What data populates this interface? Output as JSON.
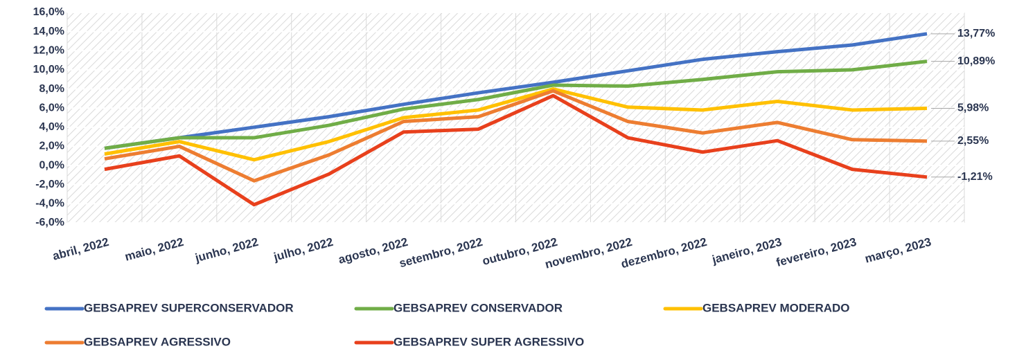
{
  "chart_data": {
    "type": "line",
    "categories": [
      "abril, 2022",
      "maio, 2022",
      "junho, 2022",
      "julho, 2022",
      "agosto, 2022",
      "setembro, 2022",
      "outubro, 2022",
      "novembro, 2022",
      "dezembro, 2022",
      "janeiro, 2023",
      "fevereiro, 2023",
      "março, 2023"
    ],
    "series": [
      {
        "name": "GEBSAPREV SUPERCONSERVADOR",
        "color": "#4472c4",
        "values": [
          1.8,
          2.9,
          4.0,
          5.1,
          6.4,
          7.6,
          8.7,
          9.9,
          11.1,
          11.9,
          12.6,
          13.77
        ],
        "value_labels": [
          null,
          null,
          null,
          null,
          null,
          null,
          null,
          null,
          null,
          null,
          null,
          "13,77%"
        ]
      },
      {
        "name": "GEBSAPREV CONSERVADOR",
        "color": "#70ad47",
        "values": [
          1.8,
          2.9,
          2.9,
          4.2,
          5.9,
          6.9,
          8.4,
          8.3,
          9.0,
          9.8,
          10.0,
          10.89
        ],
        "value_labels": [
          null,
          null,
          null,
          null,
          null,
          null,
          null,
          null,
          null,
          null,
          null,
          "10,89%"
        ]
      },
      {
        "name": "GEBSAPREV MODERADO",
        "color": "#ffc000",
        "values": [
          1.2,
          2.5,
          0.6,
          2.5,
          5.0,
          5.8,
          8.0,
          6.1,
          5.8,
          6.7,
          5.8,
          5.98
        ],
        "value_labels": [
          null,
          null,
          null,
          null,
          null,
          null,
          null,
          null,
          null,
          null,
          null,
          "5,98%"
        ]
      },
      {
        "name": "GEBSAPREV AGRESSIVO",
        "color": "#ed7d31",
        "values": [
          0.7,
          2.0,
          -1.6,
          1.1,
          4.6,
          5.1,
          7.8,
          4.6,
          3.4,
          4.5,
          2.7,
          2.55
        ],
        "value_labels": [
          null,
          null,
          null,
          null,
          null,
          null,
          null,
          null,
          null,
          null,
          null,
          "2,55%"
        ]
      },
      {
        "name": "GEBSAPREV SUPER AGRESSIVO",
        "color": "#e8401c",
        "values": [
          -0.4,
          1.0,
          -4.1,
          -0.9,
          3.5,
          3.8,
          7.3,
          2.9,
          1.4,
          2.6,
          -0.4,
          -1.21
        ],
        "value_labels": [
          null,
          null,
          null,
          null,
          null,
          null,
          null,
          null,
          null,
          null,
          null,
          "-1,21%"
        ]
      }
    ],
    "ylim": [
      -6,
      16
    ],
    "yticks": [
      {
        "value": -6,
        "label": "-6,0%"
      },
      {
        "value": -4,
        "label": "-4,0%"
      },
      {
        "value": -2,
        "label": "-2,0%"
      },
      {
        "value": 0,
        "label": "0,0%"
      },
      {
        "value": 2,
        "label": "2,0%"
      },
      {
        "value": 4,
        "label": "4,0%"
      },
      {
        "value": 6,
        "label": "6,0%"
      },
      {
        "value": 8,
        "label": "8,0%"
      },
      {
        "value": 10,
        "label": "10,0%"
      },
      {
        "value": 12,
        "label": "12,0%"
      },
      {
        "value": 14,
        "label": "14,0%"
      },
      {
        "value": 16,
        "label": "16,0%"
      }
    ],
    "grid": true,
    "legend": "bottom"
  }
}
